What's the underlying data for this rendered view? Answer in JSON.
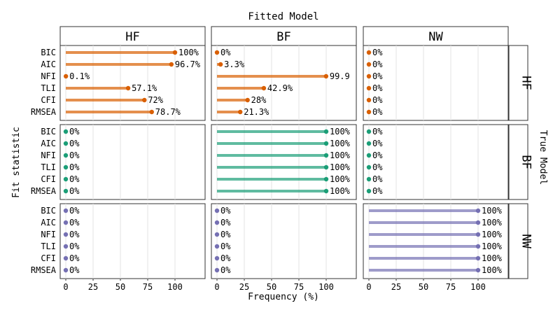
{
  "chart_data": {
    "type": "bar",
    "title": "Fitted Model",
    "xlabel": "Frequency (%)",
    "ylabel": "Fit statistic",
    "right_label": "True Model",
    "xlim": [
      0,
      100
    ],
    "x_ticks": [
      "0",
      "25",
      "50",
      "75",
      "100"
    ],
    "grid": true,
    "columns": [
      "HF",
      "BF",
      "NW"
    ],
    "rows": [
      "HF",
      "BF",
      "NW"
    ],
    "statistics": [
      "BIC",
      "AIC",
      "NFI",
      "TLI",
      "CFI",
      "RMSEA"
    ],
    "colors": {
      "HF": "#d95f02",
      "BF": "#1b9e77",
      "NW": "#7570b3"
    },
    "panels": [
      {
        "true_model": "HF",
        "fitted_model": "HF",
        "values": [
          100,
          96.7,
          0.1,
          57.1,
          72,
          78.7
        ],
        "labels": [
          "100%",
          "96.7%",
          "0.1%",
          "57.1%",
          "72%",
          "78.7%"
        ]
      },
      {
        "true_model": "HF",
        "fitted_model": "BF",
        "values": [
          0,
          3.3,
          99.9,
          42.9,
          28,
          21.3
        ],
        "labels": [
          "0%",
          "3.3%",
          "99.9",
          "42.9%",
          "28%",
          "21.3%"
        ]
      },
      {
        "true_model": "HF",
        "fitted_model": "NW",
        "values": [
          0,
          0,
          0,
          0,
          0,
          0
        ],
        "labels": [
          "0%",
          "0%",
          "0%",
          "0%",
          "0%",
          "0%"
        ]
      },
      {
        "true_model": "BF",
        "fitted_model": "HF",
        "values": [
          0,
          0,
          0,
          0,
          0,
          0
        ],
        "labels": [
          "0%",
          "0%",
          "0%",
          "0%",
          "0%",
          "0%"
        ]
      },
      {
        "true_model": "BF",
        "fitted_model": "BF",
        "values": [
          100,
          100,
          100,
          100,
          100,
          100
        ],
        "labels": [
          "100%",
          "100%",
          "100%",
          "100%",
          "100%",
          "100%"
        ]
      },
      {
        "true_model": "BF",
        "fitted_model": "NW",
        "values": [
          0,
          0,
          0,
          0,
          0,
          0
        ],
        "labels": [
          "0%",
          "0%",
          "0%",
          "0%",
          "0%",
          "0%"
        ]
      },
      {
        "true_model": "NW",
        "fitted_model": "HF",
        "values": [
          0,
          0,
          0,
          0,
          0,
          0
        ],
        "labels": [
          "0%",
          "0%",
          "0%",
          "0%",
          "0%",
          "0%"
        ]
      },
      {
        "true_model": "NW",
        "fitted_model": "BF",
        "values": [
          0,
          0,
          0,
          0,
          0,
          0
        ],
        "labels": [
          "0%",
          "0%",
          "0%",
          "0%",
          "0%",
          "0%"
        ]
      },
      {
        "true_model": "NW",
        "fitted_model": "NW",
        "values": [
          100,
          100,
          100,
          100,
          100,
          100
        ],
        "labels": [
          "100%",
          "100%",
          "100%",
          "100%",
          "100%",
          "100%"
        ]
      }
    ]
  }
}
